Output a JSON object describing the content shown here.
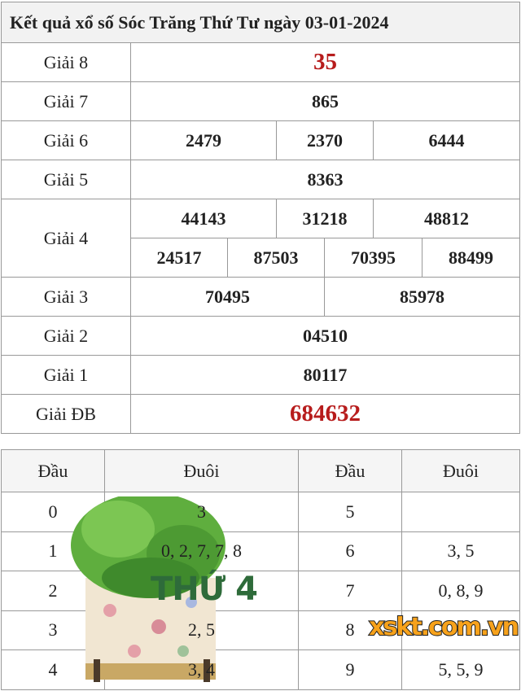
{
  "title": "Kết quả xổ số Sóc Trăng Thứ Tư ngày 03-01-2024",
  "prizes": {
    "g8": {
      "label": "Giải 8",
      "values": [
        "35"
      ]
    },
    "g7": {
      "label": "Giải 7",
      "values": [
        "865"
      ]
    },
    "g6": {
      "label": "Giải 6",
      "values": [
        "2479",
        "2370",
        "6444"
      ]
    },
    "g5": {
      "label": "Giải 5",
      "values": [
        "8363"
      ]
    },
    "g4": {
      "label": "Giải 4",
      "values": [
        "44143",
        "31218",
        "48812",
        "24517",
        "87503",
        "70395",
        "88499"
      ]
    },
    "g3": {
      "label": "Giải 3",
      "values": [
        "70495",
        "85978"
      ]
    },
    "g2": {
      "label": "Giải 2",
      "values": [
        "04510"
      ]
    },
    "g1": {
      "label": "Giải 1",
      "values": [
        "80117"
      ]
    },
    "db": {
      "label": "Giải ĐB",
      "values": [
        "684632"
      ]
    }
  },
  "loto": {
    "headers": [
      "Đầu",
      "Đuôi",
      "Đầu",
      "Đuôi"
    ],
    "rows": [
      {
        "d1": "0",
        "t1": "3",
        "d2": "5",
        "t2": ""
      },
      {
        "d1": "1",
        "t1": "0, 2, 7, 7, 8",
        "d2": "6",
        "t2": "3, 5"
      },
      {
        "d1": "2",
        "t1": "",
        "d2": "7",
        "t2": "0, 8, 9"
      },
      {
        "d1": "3",
        "t1": "2, 5",
        "d2": "8",
        "t2": ""
      },
      {
        "d1": "4",
        "t1": "3, 4",
        "d2": "9",
        "t2": "5, 5, 9"
      }
    ]
  },
  "watermark": {
    "day_text": "THỨ 4",
    "logo": "xskt.com.vn"
  },
  "colors": {
    "special": "#b71c1c",
    "header_bg": "#f2f2f2",
    "watermark_green": "#2e6b3a",
    "logo_orange": "#f7a21b"
  }
}
